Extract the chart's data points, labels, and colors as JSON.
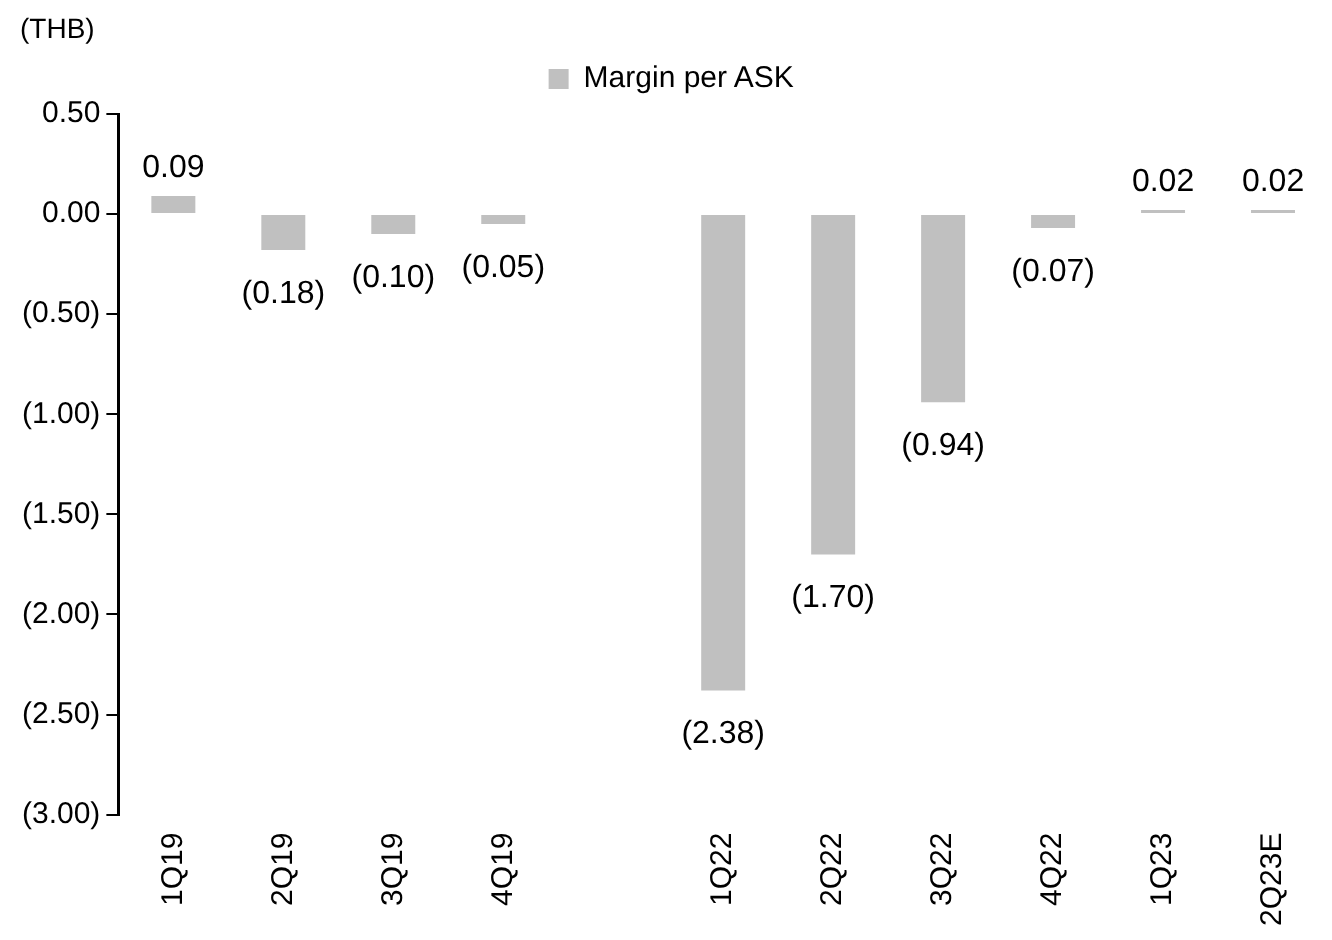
{
  "chart_data": {
    "type": "bar",
    "ylabel": "(THB)",
    "categories": [
      "1Q19",
      "2Q19",
      "3Q19",
      "4Q19",
      null,
      "1Q22",
      "2Q22",
      "3Q22",
      "4Q22",
      "1Q23",
      "2Q23E"
    ],
    "series": [
      {
        "name": "Margin per ASK",
        "color": "#c0c0c0",
        "values": [
          0.09,
          -0.18,
          -0.1,
          -0.05,
          null,
          -2.38,
          -1.7,
          -0.94,
          -0.07,
          0.02,
          0.02
        ],
        "value_labels": [
          "0.09",
          "(0.18)",
          "(0.10)",
          "(0.05)",
          null,
          "(2.38)",
          "(1.70)",
          "(0.94)",
          "(0.07)",
          "0.02",
          "0.02"
        ]
      }
    ],
    "ylim": [
      -3,
      0.5
    ],
    "yticks": [
      {
        "value": 0.5,
        "label": "0.50"
      },
      {
        "value": 0,
        "label": "0.00"
      },
      {
        "value": -0.5,
        "label": "(0.50)"
      },
      {
        "value": -1,
        "label": "(1.00)"
      },
      {
        "value": -1.5,
        "label": "(1.50)"
      },
      {
        "value": -2,
        "label": "(2.00)"
      },
      {
        "value": -2.5,
        "label": "(2.50)"
      },
      {
        "value": -3,
        "label": "(3.00)"
      }
    ],
    "grid": false,
    "legend": "top"
  }
}
